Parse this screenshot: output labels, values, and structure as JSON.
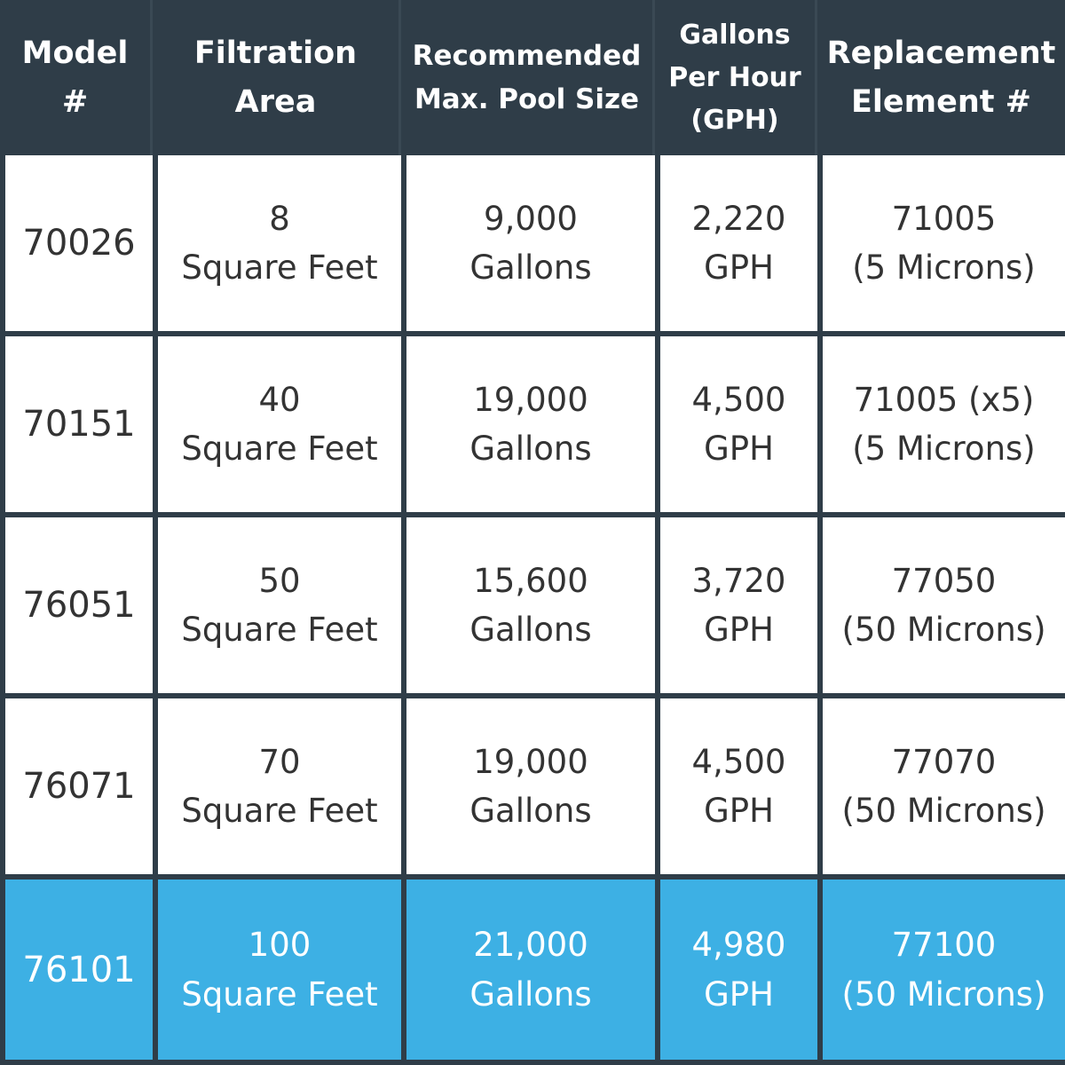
{
  "headers": {
    "model": [
      "Model",
      "#"
    ],
    "area": [
      "Filtration",
      "Area"
    ],
    "pool": [
      "Recommended",
      "Max. Pool Size"
    ],
    "gph": [
      "Gallons",
      "Per Hour",
      "(GPH)"
    ],
    "element": [
      "Replacement",
      "Element #"
    ]
  },
  "rows": [
    {
      "model": "70026",
      "area": [
        "8",
        "Square Feet"
      ],
      "pool": [
        "9,000",
        "Gallons"
      ],
      "gph": [
        "2,220",
        "GPH"
      ],
      "element": [
        "71005",
        "(5 Microns)"
      ]
    },
    {
      "model": "70151",
      "area": [
        "40",
        "Square Feet"
      ],
      "pool": [
        "19,000",
        "Gallons"
      ],
      "gph": [
        "4,500",
        "GPH"
      ],
      "element": [
        "71005 (x5)",
        "(5 Microns)"
      ]
    },
    {
      "model": "76051",
      "area": [
        "50",
        "Square Feet"
      ],
      "pool": [
        "15,600",
        "Gallons"
      ],
      "gph": [
        "3,720",
        "GPH"
      ],
      "element": [
        "77050",
        "(50 Microns)"
      ]
    },
    {
      "model": "76071",
      "area": [
        "70",
        "Square Feet"
      ],
      "pool": [
        "19,000",
        "Gallons"
      ],
      "gph": [
        "4,500",
        "GPH"
      ],
      "element": [
        "77070",
        "(50 Microns)"
      ]
    },
    {
      "model": "76101",
      "area": [
        "100",
        "Square Feet"
      ],
      "pool": [
        "21,000",
        "Gallons"
      ],
      "gph": [
        "4,980",
        "GPH"
      ],
      "element": [
        "77100",
        "(50 Microns)"
      ]
    }
  ],
  "colors": {
    "header_bg": "#2f3d48",
    "highlight_bg": "#3db0e4",
    "body_bg": "#ffffff",
    "body_text": "#333333"
  }
}
